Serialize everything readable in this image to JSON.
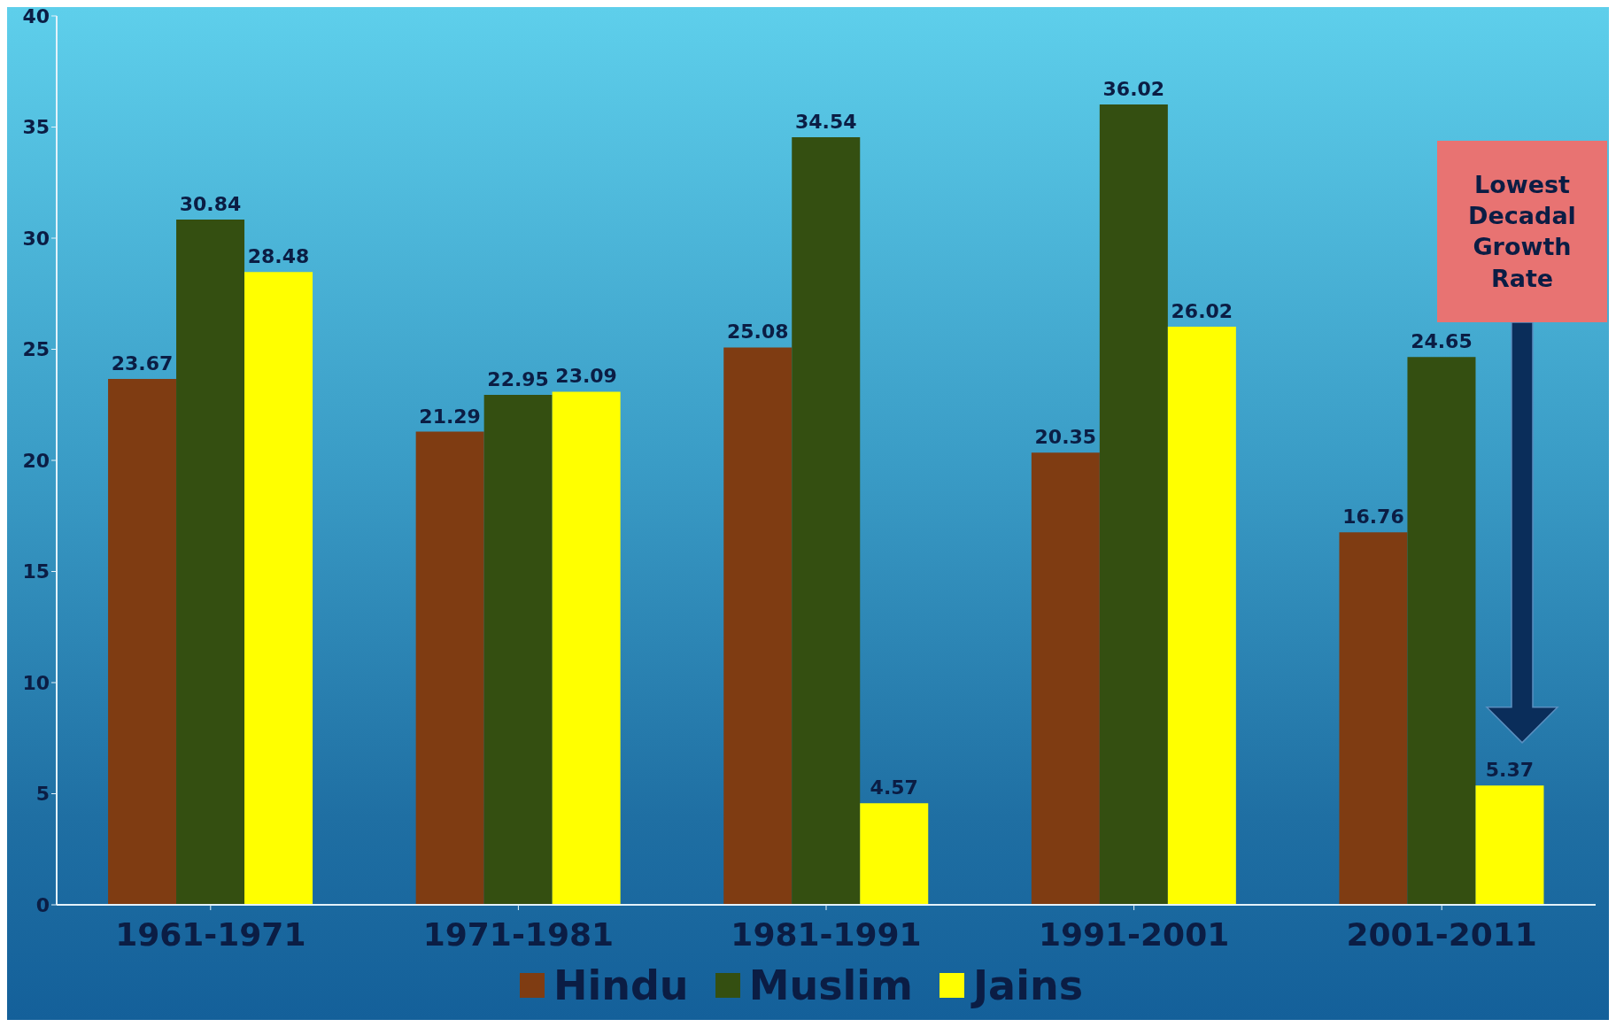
{
  "chart_data": {
    "type": "bar",
    "categories": [
      "1961-1971",
      "1971-1981",
      "1981-1991",
      "1991-2001",
      "2001-2011"
    ],
    "series": [
      {
        "name": "Hindu",
        "color": "#7f3c12",
        "values": [
          23.67,
          21.29,
          25.08,
          20.35,
          16.76
        ]
      },
      {
        "name": "Muslim",
        "color": "#344f11",
        "values": [
          30.84,
          22.95,
          34.54,
          36.02,
          24.65
        ]
      },
      {
        "name": "Jains",
        "color": "#ffff00",
        "values": [
          28.48,
          23.09,
          4.57,
          26.02,
          5.37
        ]
      }
    ],
    "ylim": [
      0,
      40
    ],
    "yticks": [
      0,
      5,
      10,
      15,
      20,
      25,
      30,
      35,
      40
    ],
    "legend": "bottom",
    "data_labels": true,
    "annotations": [
      "Lowest Decadal Growth Rate"
    ]
  }
}
